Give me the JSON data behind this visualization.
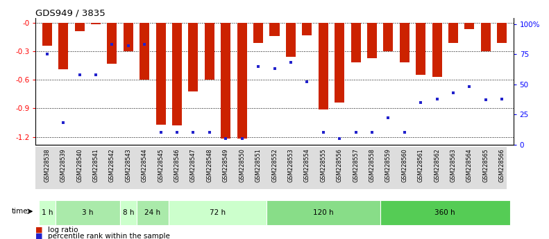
{
  "title": "GDS949 / 3835",
  "samples": [
    "GSM228538",
    "GSM228539",
    "GSM228540",
    "GSM228541",
    "GSM228542",
    "GSM228543",
    "GSM228544",
    "GSM228545",
    "GSM228546",
    "GSM228547",
    "GSM228548",
    "GSM228549",
    "GSM228550",
    "GSM228551",
    "GSM228552",
    "GSM228553",
    "GSM228554",
    "GSM228555",
    "GSM228556",
    "GSM228557",
    "GSM228558",
    "GSM228559",
    "GSM228560",
    "GSM228561",
    "GSM228562",
    "GSM228563",
    "GSM228564",
    "GSM228565",
    "GSM228566"
  ],
  "log_ratio": [
    -0.24,
    -0.49,
    -0.09,
    -0.02,
    -0.43,
    -0.3,
    -0.6,
    -1.07,
    -1.08,
    -0.72,
    -0.6,
    -1.22,
    -1.22,
    -0.21,
    -0.14,
    -0.36,
    -0.13,
    -0.91,
    -0.84,
    -0.42,
    -0.37,
    -0.3,
    -0.42,
    -0.55,
    -0.57,
    -0.21,
    -0.07,
    -0.3,
    -0.21
  ],
  "percentile_pct": [
    75,
    18,
    58,
    58,
    83,
    82,
    83,
    10,
    10,
    10,
    10,
    5,
    5,
    65,
    63,
    68,
    52,
    10,
    5,
    10,
    10,
    22,
    10,
    35,
    38,
    43,
    48,
    37,
    38
  ],
  "time_groups": [
    {
      "label": "1 h",
      "start": 0,
      "end": 1,
      "color": "#ccffcc"
    },
    {
      "label": "3 h",
      "start": 1,
      "end": 5,
      "color": "#aaeaaa"
    },
    {
      "label": "8 h",
      "start": 5,
      "end": 6,
      "color": "#ccffcc"
    },
    {
      "label": "24 h",
      "start": 6,
      "end": 8,
      "color": "#aaeaaa"
    },
    {
      "label": "72 h",
      "start": 8,
      "end": 14,
      "color": "#ccffcc"
    },
    {
      "label": "120 h",
      "start": 14,
      "end": 21,
      "color": "#88dd88"
    },
    {
      "label": "360 h",
      "start": 21,
      "end": 29,
      "color": "#55cc55"
    }
  ],
  "ylim_left": [
    -1.28,
    0.05
  ],
  "ylim_right": [
    0,
    105
  ],
  "bar_color": "#cc2200",
  "marker_color": "#2222cc",
  "yticks_left": [
    -1.2,
    -0.9,
    -0.6,
    -0.3,
    0
  ],
  "ytick_labels_left": [
    "-1.2",
    "-0.9",
    "-0.6",
    "-0.3",
    "-0"
  ],
  "yticks_right": [
    0,
    25,
    50,
    75,
    100
  ],
  "ytick_labels_right": [
    "0",
    "25",
    "50",
    "75",
    "100%"
  ]
}
